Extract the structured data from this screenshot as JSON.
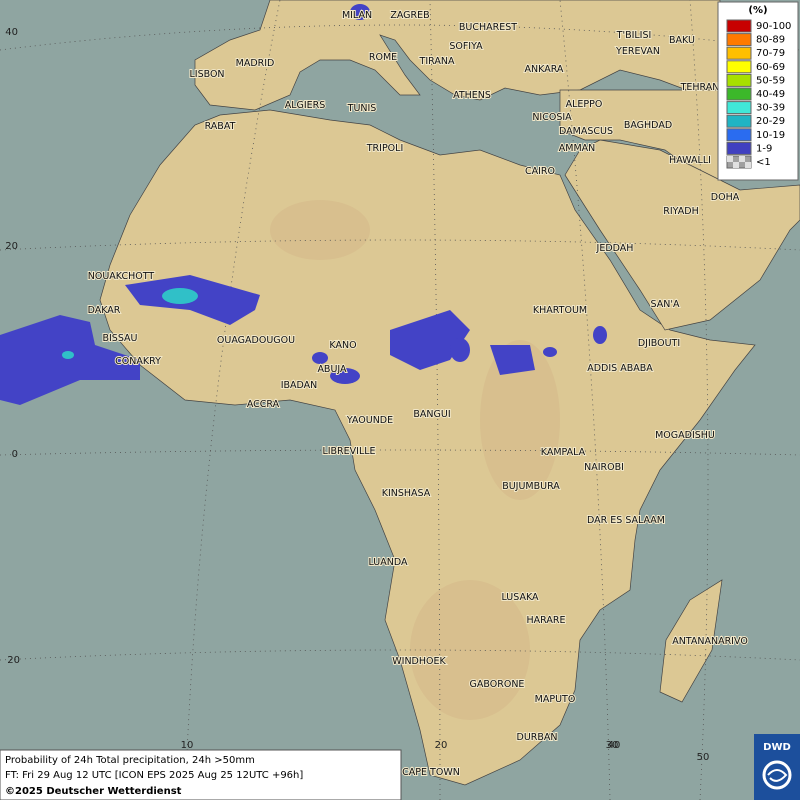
{
  "map": {
    "cities": [
      "MILAN",
      "ZAGREB",
      "BUCHAREST",
      "SOFIYA",
      "ROME",
      "TIRANA",
      "ANKARA",
      "T'BILISI",
      "BAKU",
      "YEREVAN",
      "TEHRAN",
      "LISBON",
      "MADRID",
      "ALGIERS",
      "TUNIS",
      "ATHENS",
      "NICOSIA",
      "ALEPPO",
      "BAGHDAD",
      "DAMASCUS",
      "AMMAN",
      "RABAT",
      "TRIPOLI",
      "CAIRO",
      "HAWALLI",
      "DOHA",
      "RIYADH",
      "JEDDAH",
      "NOUAKCHOTT",
      "DAKAR",
      "BISSAU",
      "CONAKRY",
      "OUAGADOUGOU",
      "KANO",
      "ABUJA",
      "IBADAN",
      "ACCRA",
      "KHARTOUM",
      "SAN'A",
      "DJIBOUTI",
      "ADDIS ABABA",
      "YAOUNDE",
      "BANGUI",
      "LIBREVILLE",
      "MOGADISHU",
      "KAMPALA",
      "NAIROBI",
      "BUJUMBURA",
      "KINSHASA",
      "DAR ES SALAAM",
      "LUANDA",
      "LUSAKA",
      "HARARE",
      "ANTANANARIVO",
      "WINDHOEK",
      "GABORONE",
      "MAPUTO",
      "DURBAN",
      "CAPE TOWN"
    ],
    "lat_labels": [
      "40",
      "20",
      "0",
      "20"
    ],
    "lon_labels": [
      "10",
      "20",
      "30",
      "40",
      "50"
    ]
  },
  "legend": {
    "title": "(%)",
    "items": [
      {
        "label": "90-100",
        "color": "#c80000"
      },
      {
        "label": "80-89",
        "color": "#ff7a00"
      },
      {
        "label": "70-79",
        "color": "#ffbf00"
      },
      {
        "label": "60-69",
        "color": "#ffff00"
      },
      {
        "label": "50-59",
        "color": "#a8e000"
      },
      {
        "label": "40-49",
        "color": "#3cb82a"
      },
      {
        "label": "30-39",
        "color": "#40e8d8"
      },
      {
        "label": "20-29",
        "color": "#20b4c4"
      },
      {
        "label": "10-19",
        "color": "#2a6cf0"
      },
      {
        "label": "1-9",
        "color": "#4040c0"
      },
      {
        "label": "<1",
        "color": "#a0a0a0"
      }
    ]
  },
  "caption": {
    "line1": "Probability of 24h Total precipitation, 24h >50mm",
    "line2": "FT: Fri 29 Aug 12 UTC [ICON EPS 2025 Aug 25 12UTC +96h]",
    "copyright": "©2025 Deutscher Wetterdienst"
  },
  "logo": "DWD"
}
